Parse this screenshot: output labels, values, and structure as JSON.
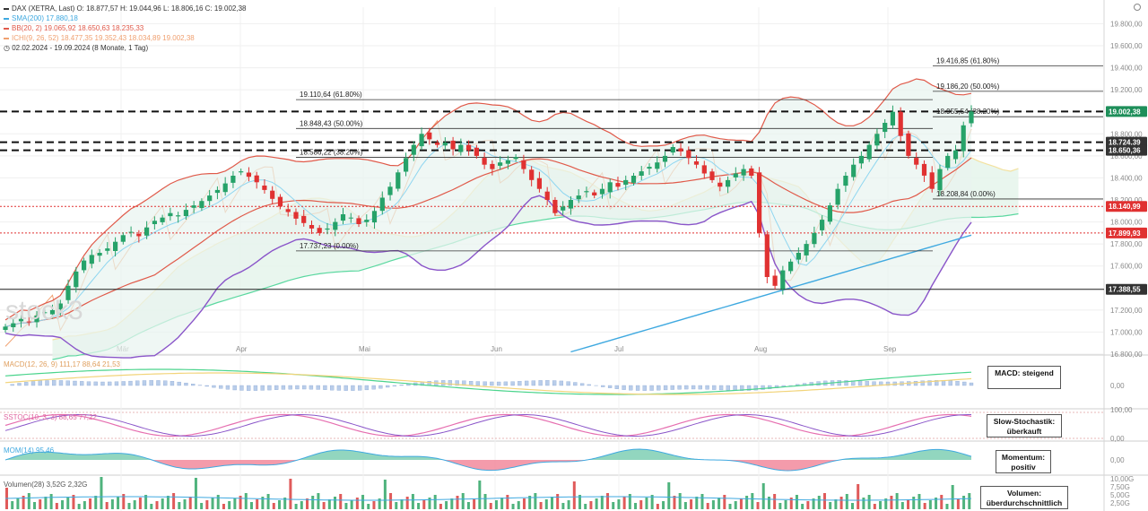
{
  "legend": {
    "main": "DAX (XETRA, Last)  O: 18.877,57  H: 19.044,96  L: 18.806,16  C: 19.002,38",
    "sma": "SMA(200)  17.880,18",
    "bb": "BB(20, 2)  19.065,92  18.650,63  18.235,33",
    "ichimoku": "ICHI(9, 26, 52)  18.477,35  19.352,43  18.034,89  19.002,38",
    "period": "02.02.2024 - 19.09.2024  (8 Monate, 1 Tag)"
  },
  "watermark": "stock3",
  "colors": {
    "bull": "#26a269",
    "bear": "#e03131",
    "sma": "#3fa9e0",
    "bb": "#e05a4a",
    "bb_fill": "#e8f3ef",
    "lower_band": "#8a55c9",
    "ichi_orange": "#f0a070",
    "ichi_green": "#5bd8a0",
    "ichi_yellow": "#f3e2a0",
    "fib": "#333333",
    "support_red": "#e03131"
  },
  "chart_data": [
    {
      "type": "candlestick",
      "title": "DAX (XETRA, Last)",
      "x_labels": [
        "Mär",
        "Apr",
        "Mai",
        "Jun",
        "Jul",
        "Aug",
        "Sep"
      ],
      "y_ticks": [
        "19.800,00",
        "19.600,00",
        "19.400,00",
        "19.200,00",
        "19.000,00",
        "18.800,00",
        "18.600,00",
        "18.400,00",
        "18.200,00",
        "18.000,00",
        "17.800,00",
        "17.600,00",
        "17.400,00",
        "17.200,00",
        "17.000,00",
        "16.800,00"
      ],
      "ylim": [
        16800,
        19950
      ],
      "last": {
        "open": 18877.57,
        "high": 19044.96,
        "low": 18806.16,
        "close": 19002.38
      },
      "price_tags": [
        {
          "label": "19.002,38",
          "value": 19002.38,
          "color": "#1e8f5a"
        },
        {
          "label": "18.724,39",
          "value": 18724.39,
          "color": "#333333"
        },
        {
          "label": "18.650,36",
          "value": 18650.36,
          "color": "#333333"
        },
        {
          "label": "18.140,99",
          "value": 18140.99,
          "color": "#e03131"
        },
        {
          "label": "17.899,93",
          "value": 17899.93,
          "color": "#e03131"
        },
        {
          "label": "17.388,55",
          "value": 17388.55,
          "color": "#333333"
        }
      ],
      "fib_levels": [
        {
          "label": "19.416,85 (61.80%)",
          "value": 19416.85
        },
        {
          "label": "19.186,20 (50.00%)",
          "value": 19186.2
        },
        {
          "label": "18.955,54 (38.20%)",
          "value": 18955.54
        },
        {
          "label": "18.208,84 (0.00%)",
          "value": 18208.84
        },
        {
          "label": "19.110,64 (61.80%)",
          "value": 19110.64
        },
        {
          "label": "18.848,43 (50.00%)",
          "value": 18848.43
        },
        {
          "label": "18.586,22 (38.20%)",
          "value": 18586.22
        },
        {
          "label": "17.737,23 (0.00%)",
          "value": 17737.23
        }
      ],
      "closes": [
        17050,
        17080,
        17120,
        17090,
        17150,
        17180,
        17200,
        17260,
        17420,
        17550,
        17650,
        17700,
        17720,
        17760,
        17820,
        17880,
        17910,
        17870,
        17950,
        18010,
        18040,
        18080,
        18060,
        18110,
        18150,
        18190,
        18240,
        18290,
        18350,
        18420,
        18460,
        18410,
        18360,
        18290,
        18210,
        18140,
        18090,
        18030,
        17990,
        17940,
        17900,
        17940,
        18000,
        18070,
        18040,
        17980,
        18020,
        18100,
        18220,
        18320,
        18450,
        18580,
        18700,
        18800,
        18750,
        18700,
        18720,
        18660,
        18700,
        18650,
        18600,
        18520,
        18480,
        18540,
        18560,
        18590,
        18480,
        18380,
        18300,
        18200,
        18080,
        18140,
        18200,
        18240,
        18280,
        18240,
        18300,
        18360,
        18320,
        18380,
        18420,
        18460,
        18500,
        18540,
        18600,
        18680,
        18640,
        18580,
        18520,
        18440,
        18380,
        18320,
        18380,
        18440,
        18480,
        18420,
        17900,
        17500,
        17420,
        17560,
        17640,
        17720,
        17800,
        17900,
        18020,
        18150,
        18300,
        18420,
        18520,
        18600,
        18700,
        18800,
        18900,
        19000,
        18780,
        18600,
        18520,
        18420,
        18300,
        18480,
        18600,
        18650,
        18877.57,
        19002.38
      ]
    },
    {
      "type": "line",
      "title": "MACD(12, 26, 9)",
      "values_printed": [
        "111,17",
        "88,64",
        "21,53"
      ],
      "label": "MACD: steigend",
      "ytick": "0,00"
    },
    {
      "type": "line",
      "title": "SSTOC(10, 3, 3)",
      "values_printed": [
        "88,65",
        "77,22"
      ],
      "label": "Slow-Stochastik: überkauft",
      "yticks": [
        "100,00",
        "0,00"
      ]
    },
    {
      "type": "area",
      "title": "MOM(14)",
      "values_printed": [
        "95,46"
      ],
      "label": "Momentum: positiv",
      "ytick": "0,00"
    },
    {
      "type": "bar",
      "title": "Volumen(28)",
      "values_printed": [
        "3,52G",
        "2,32G"
      ],
      "label": "Volumen: überdurchschnittlich",
      "yticks": [
        "10,00G",
        "7,50G",
        "5,00G",
        "2,50G"
      ]
    }
  ]
}
